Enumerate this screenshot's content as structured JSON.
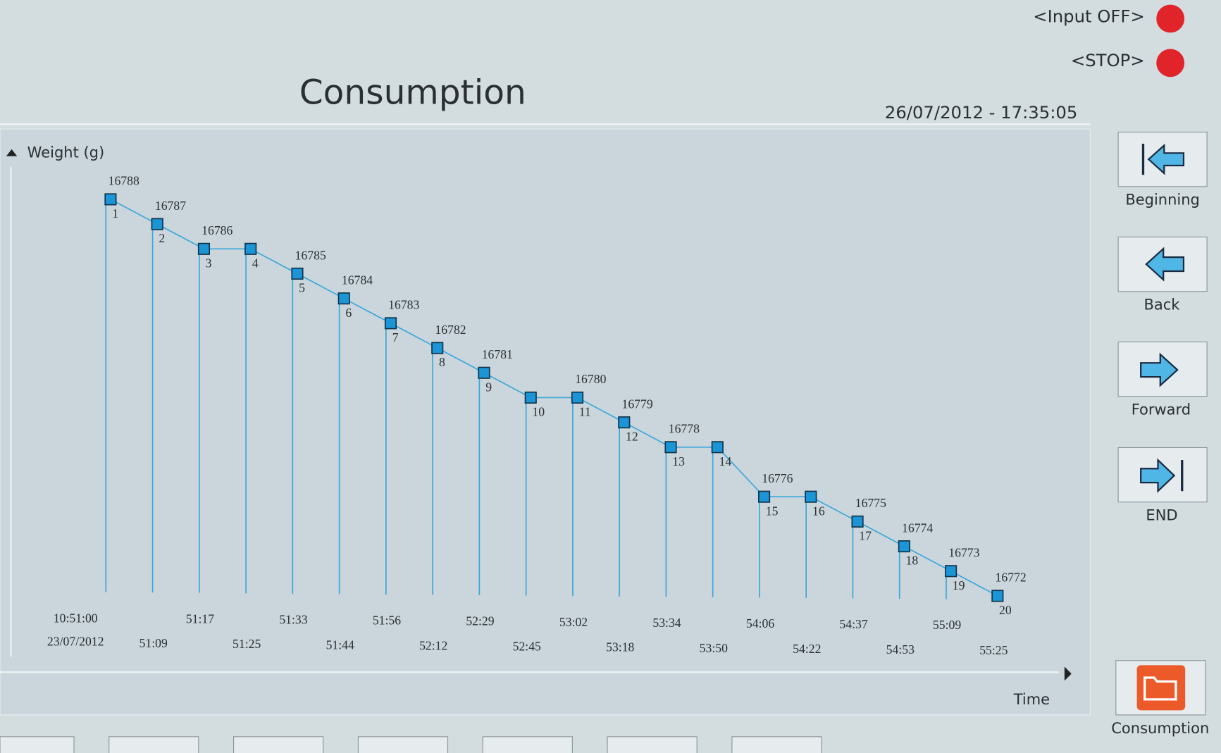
{
  "header": {
    "title": "Consumption",
    "datetime": "26/07/2012 - 17:35:05",
    "indicators": [
      "<Input OFF>",
      "<STOP>"
    ]
  },
  "buttons": [
    "Beginning",
    "Back",
    "Forward",
    "END",
    "Consumption"
  ],
  "chart_data": {
    "type": "line",
    "y_label": "Weight (g)",
    "x_label": "Time",
    "start_date": "23/07/2012",
    "categories": [
      "10:51:00",
      "51:09",
      "51:17",
      "51:25",
      "51:33",
      "51:44",
      "51:56",
      "52:12",
      "52:29",
      "52:45",
      "53:02",
      "53:18",
      "53:34",
      "53:50",
      "54:06",
      "54:22",
      "54:37",
      "54:53",
      "55:09",
      "55:25"
    ],
    "point_ids": [
      1,
      2,
      3,
      4,
      5,
      6,
      7,
      8,
      9,
      10,
      11,
      12,
      13,
      14,
      15,
      16,
      17,
      18,
      19,
      20
    ],
    "series": [
      {
        "name": "Weight",
        "color": "#3aa6dc",
        "marker_color": "#1b95d6",
        "values": [
          16788,
          16787,
          16786,
          16786,
          16785,
          16784,
          16783,
          16782,
          16781,
          16780,
          16780,
          16779,
          16778,
          16778,
          16776,
          16776,
          16775,
          16774,
          16773,
          16772
        ],
        "value_labels": [
          "16788",
          "16787",
          "16786",
          null,
          "16785",
          "16784",
          "16783",
          "16782",
          "16781",
          null,
          "16780",
          "16779",
          "16778",
          null,
          "16776",
          null,
          "16775",
          "16774",
          "16773",
          "16772"
        ]
      }
    ],
    "ylim": [
      16771.9,
      16789.3
    ]
  }
}
